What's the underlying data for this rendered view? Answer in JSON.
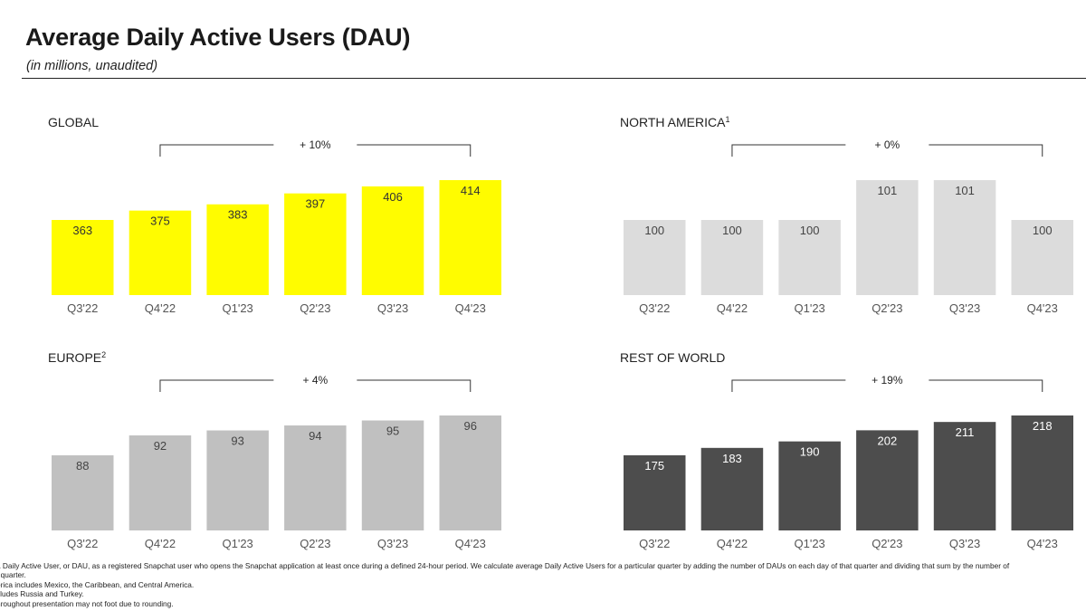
{
  "header": {
    "title": "Average Daily Active Users (DAU)",
    "subtitle": "(in millions, unaudited)"
  },
  "chart_data": [
    {
      "type": "bar",
      "title": "GLOBAL",
      "title_superscript": "",
      "categories": [
        "Q3'22",
        "Q4'22",
        "Q1'23",
        "Q2'23",
        "Q3'23",
        "Q4'23"
      ],
      "values": [
        363,
        375,
        383,
        397,
        406,
        414
      ],
      "growth_label": "+ 10%",
      "bar_color": "#FFFC00",
      "label_color": "#333333",
      "grid": false,
      "legend": "none"
    },
    {
      "type": "bar",
      "title": "NORTH AMERICA",
      "title_superscript": "1",
      "categories": [
        "Q3'22",
        "Q4'22",
        "Q1'23",
        "Q2'23",
        "Q3'23",
        "Q4'23"
      ],
      "values": [
        100,
        100,
        100,
        101,
        101,
        100
      ],
      "growth_label": "+ 0%",
      "bar_color": "#DCDCDC",
      "label_color": "#444444",
      "grid": false,
      "legend": "none"
    },
    {
      "type": "bar",
      "title": "EUROPE",
      "title_superscript": "2",
      "categories": [
        "Q3'22",
        "Q4'22",
        "Q1'23",
        "Q2'23",
        "Q3'23",
        "Q4'23"
      ],
      "values": [
        88,
        92,
        93,
        94,
        95,
        96
      ],
      "growth_label": "+ 4%",
      "bar_color": "#C0C0C0",
      "label_color": "#444444",
      "grid": false,
      "legend": "none"
    },
    {
      "type": "bar",
      "title": "REST OF WORLD",
      "title_superscript": "",
      "categories": [
        "Q3'22",
        "Q4'22",
        "Q1'23",
        "Q2'23",
        "Q3'23",
        "Q4'23"
      ],
      "values": [
        175,
        183,
        190,
        202,
        211,
        218
      ],
      "growth_label": "+ 19%",
      "bar_color": "#4D4D4D",
      "label_color": "#FFFFFF",
      "grid": false,
      "legend": "none"
    }
  ],
  "footnotes": [
    "a Daily Active User, or DAU, as a registered Snapchat user who opens the Snapchat application at least once during a defined 24-hour period. We calculate average Daily Active Users for a particular quarter by adding the number of DAUs on each day of that quarter and dividing that sum by the number of",
    "t quarter.",
    "erica includes Mexico, the Caribbean, and Central America.",
    "cludes Russia and Turkey.",
    "hroughout presentation may not foot due to rounding."
  ]
}
